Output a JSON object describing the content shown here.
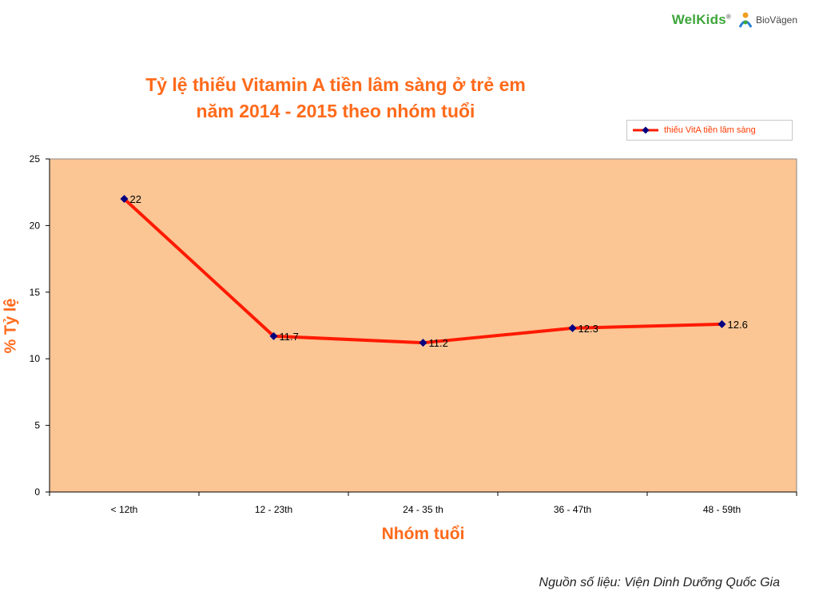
{
  "brand": {
    "welkids": "WelKids",
    "welkids_mark": "®",
    "biovagen": "BioVägen"
  },
  "chart_data": {
    "type": "line",
    "title_lines": [
      "Tỷ lệ thiếu Vitamin A tiền lâm sàng ở trẻ em",
      "năm 2014 - 2015 theo nhóm tuổi"
    ],
    "xlabel": "Nhóm tuổi",
    "ylabel": "% Tỷ lệ",
    "categories": [
      "< 12th",
      "12 - 23th",
      "24 - 35 th",
      "36 - 47th",
      "48 - 59th"
    ],
    "series": [
      {
        "name": "thiếu VitA tiền lâm sàng",
        "values": [
          22,
          11.7,
          11.2,
          12.3,
          12.6
        ],
        "labels": [
          "22",
          "11.7",
          "11.2",
          "12.3",
          "12.6"
        ],
        "color": "#ff1a00",
        "marker_color": "#000080"
      }
    ],
    "ylim": [
      0,
      25
    ],
    "yticks": [
      0,
      5,
      10,
      15,
      20,
      25
    ],
    "plot_background": "#fbc594",
    "grid": false,
    "legend_position": "top-right"
  },
  "source": "Nguồn số liệu: Viện Dinh Dưỡng Quốc Gia",
  "colors": {
    "title": "#ff6a1a",
    "brand_green": "#3da63a"
  }
}
